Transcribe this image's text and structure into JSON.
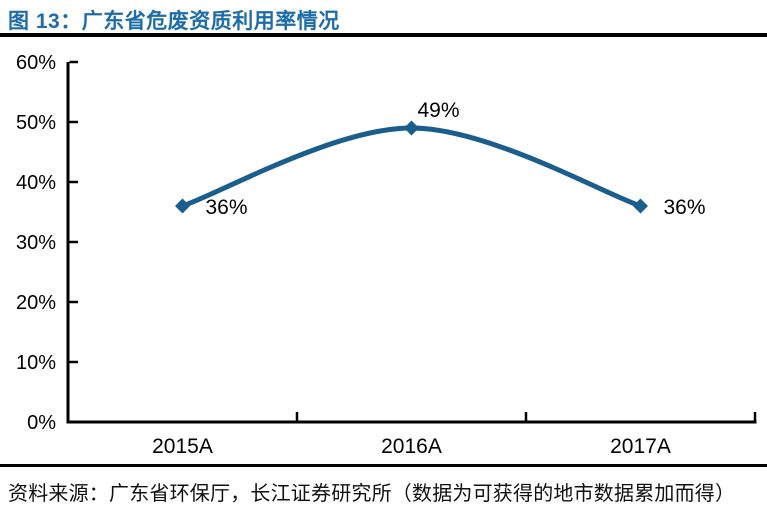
{
  "header": {
    "title": "图 13：广东省危废资质利用率情况"
  },
  "footer": {
    "source": "资料来源：广东省环保厅，长江证券研究所（数据为可获得的地市数据累加而得）"
  },
  "colors": {
    "title_blue": "#1E6CA8",
    "line_blue": "#1B5D8C",
    "axis_color": "#000000",
    "label_color": "#000000"
  },
  "chart_data": {
    "type": "line",
    "title": "广东省危废资质利用率情况",
    "categories": [
      "2015A",
      "2016A",
      "2017A"
    ],
    "values": [
      36,
      49,
      36
    ],
    "data_labels": [
      "36%",
      "49%",
      "36%"
    ],
    "label_positions": [
      "right",
      "above",
      "right"
    ],
    "ylim": [
      0,
      60
    ],
    "ytick_step": 10,
    "ytick_suffix": "%",
    "ytick_labels": [
      "0%",
      "10%",
      "20%",
      "30%",
      "40%",
      "50%",
      "60%"
    ],
    "xlabel": "",
    "ylabel": "",
    "grid": false,
    "legend": "none",
    "marker": "diamond",
    "smooth": true
  }
}
